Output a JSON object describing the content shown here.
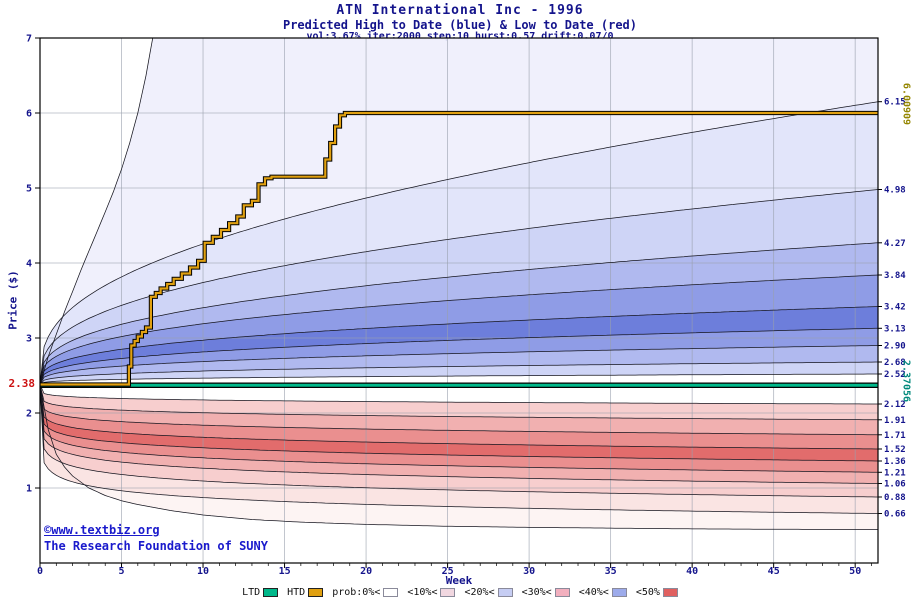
{
  "header": {
    "title": "ATN International Inc - 1996",
    "subtitle": "Predicted High to Date (blue) &  Low to Date (red)",
    "params": "vol:3.67% iter:2000 step:10 hurst:0.57 drift:0.07/0"
  },
  "credit": {
    "line1": "©www.textbiz.org",
    "line2": "The Research Foundation of SUNY"
  },
  "legend": {
    "items": [
      {
        "label": "LTD",
        "color": "#00b88a",
        "outlined": true
      },
      {
        "label": "HTD",
        "color": "#e0a010",
        "outlined": true
      },
      {
        "label": "prob:0%<",
        "color": "#ffffff",
        "outlined": false
      },
      {
        "label": "<10%<",
        "color": "#f1d7e0",
        "outlined": false
      },
      {
        "label": "<20%<",
        "color": "#c6cdf3",
        "outlined": false
      },
      {
        "label": "<30%<",
        "color": "#f2afbe",
        "outlined": false
      },
      {
        "label": "<40%<",
        "color": "#9dabeb",
        "outlined": false
      },
      {
        "label": "<50%",
        "color": "#e06060",
        "outlined": false
      }
    ]
  },
  "chart_data": {
    "type": "fan",
    "x": {
      "label": "Week",
      "min": 0,
      "max": 51.4,
      "ticks": [
        0,
        5,
        10,
        15,
        20,
        25,
        30,
        35,
        40,
        45,
        50
      ]
    },
    "y": {
      "label": "Price ($)",
      "min": 0,
      "max": 7,
      "ticks": [
        1,
        2,
        3,
        4,
        5,
        6,
        7
      ]
    },
    "start_price": 2.38,
    "start_price_label": "2.38",
    "ltd": {
      "value": 2.37056,
      "label": "2.37056",
      "color": "#00b88a"
    },
    "htd": {
      "max": 6.00909,
      "label": "6.00909",
      "color": "#e0a010",
      "steps": [
        [
          0,
          2.38
        ],
        [
          5.3,
          2.38
        ],
        [
          5.45,
          2.62
        ],
        [
          5.6,
          2.9
        ],
        [
          5.8,
          2.96
        ],
        [
          6.0,
          3.02
        ],
        [
          6.25,
          3.08
        ],
        [
          6.5,
          3.14
        ],
        [
          6.8,
          3.55
        ],
        [
          7.1,
          3.6
        ],
        [
          7.4,
          3.66
        ],
        [
          7.8,
          3.72
        ],
        [
          8.2,
          3.79
        ],
        [
          8.7,
          3.86
        ],
        [
          9.2,
          3.94
        ],
        [
          9.7,
          4.03
        ],
        [
          10.1,
          4.27
        ],
        [
          10.6,
          4.35
        ],
        [
          11.1,
          4.44
        ],
        [
          11.6,
          4.53
        ],
        [
          12.1,
          4.62
        ],
        [
          12.5,
          4.77
        ],
        [
          13.0,
          4.83
        ],
        [
          13.4,
          5.05
        ],
        [
          13.8,
          5.13
        ],
        [
          14.2,
          5.15
        ],
        [
          17.2,
          5.15
        ],
        [
          17.5,
          5.38
        ],
        [
          17.8,
          5.6
        ],
        [
          18.1,
          5.82
        ],
        [
          18.4,
          5.97
        ],
        [
          18.7,
          6.0
        ],
        [
          51.4,
          6.0
        ]
      ]
    },
    "right_axis_labels": {
      "high": [
        "6.15",
        "4.98",
        "4.27",
        "3.84",
        "3.42",
        "3.13",
        "2.90",
        "2.68",
        "2.52"
      ],
      "low": [
        "2.12",
        "1.91",
        "1.71",
        "1.52",
        "1.36",
        "1.21",
        "1.06",
        "0.88",
        "0.66"
      ]
    },
    "high_fan": {
      "extreme_points": [
        [
          0,
          2.38
        ],
        [
          0.5,
          2.75
        ],
        [
          1,
          3.05
        ],
        [
          1.5,
          3.35
        ],
        [
          2,
          3.62
        ],
        [
          2.5,
          3.9
        ],
        [
          3,
          4.16
        ],
        [
          3.5,
          4.42
        ],
        [
          4,
          4.68
        ],
        [
          4.5,
          4.95
        ],
        [
          5,
          5.25
        ],
        [
          5.5,
          5.6
        ],
        [
          6,
          6.0
        ],
        [
          6.5,
          6.5
        ],
        [
          7,
          7.1
        ],
        [
          7.5,
          7.8
        ],
        [
          51.4,
          7.8
        ]
      ],
      "band_colors": [
        "#efeffc",
        "#e0e3fa",
        "#cad0f5",
        "#a9b3ee",
        "#8694e4",
        "#6173d8",
        "#8694e4",
        "#a9b3ee",
        "#cad0f5"
      ],
      "shape_exponent": 0.3
    },
    "low_fan": {
      "extreme_points": [
        [
          0,
          2.38
        ],
        [
          0.5,
          1.78
        ],
        [
          1,
          1.45
        ],
        [
          1.5,
          1.28
        ],
        [
          2,
          1.16
        ],
        [
          3,
          1.0
        ],
        [
          4,
          0.9
        ],
        [
          5,
          0.83
        ],
        [
          6,
          0.78
        ],
        [
          8,
          0.7
        ],
        [
          10,
          0.64
        ],
        [
          13,
          0.58
        ],
        [
          16,
          0.545
        ],
        [
          20,
          0.515
        ],
        [
          25,
          0.49
        ],
        [
          30,
          0.475
        ],
        [
          35,
          0.465
        ],
        [
          40,
          0.455
        ],
        [
          45,
          0.45
        ],
        [
          51.4,
          0.445
        ]
      ],
      "band_colors": [
        "#fdf3f2",
        "#fae2e1",
        "#f6caca",
        "#f0a9a9",
        "#e88585",
        "#e06060",
        "#e88585",
        "#f0a9a9",
        "#f6caca"
      ],
      "shape_exponent": 0.15
    }
  }
}
